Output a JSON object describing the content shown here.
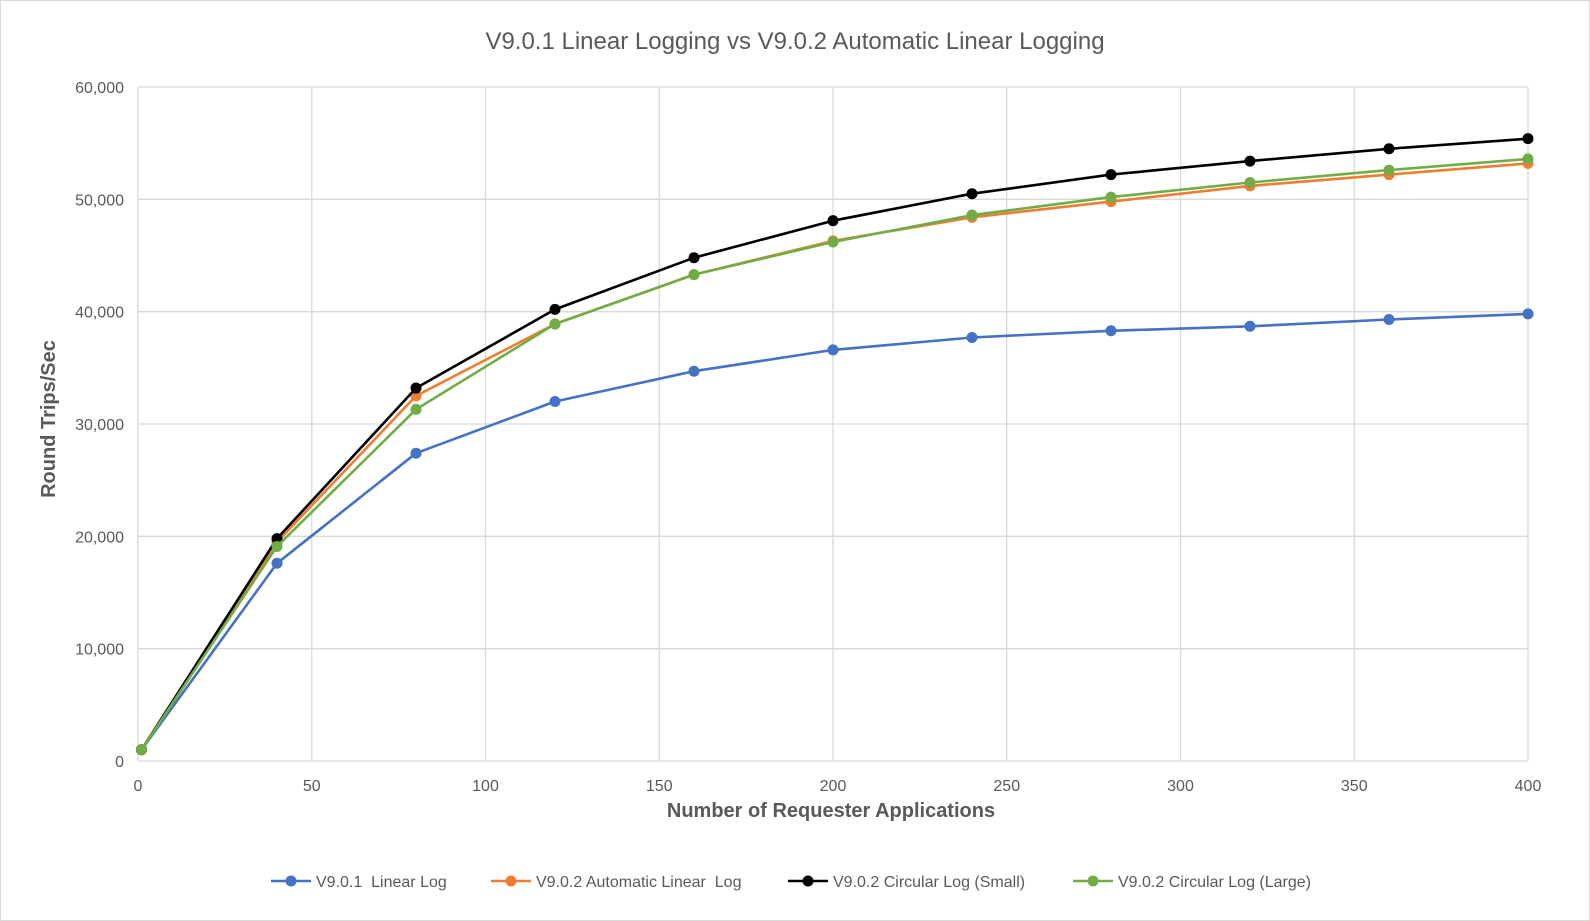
{
  "chart_data": {
    "type": "line",
    "title": "V9.0.1 Linear Logging vs V9.0.2 Automatic Linear Logging",
    "xlabel": "Number of Requester Applications",
    "ylabel": "Round Trips/Sec",
    "xlim": [
      0,
      400
    ],
    "ylim": [
      0,
      60000
    ],
    "x_ticks": [
      0,
      50,
      100,
      150,
      200,
      250,
      300,
      350,
      400
    ],
    "y_ticks": [
      0,
      10000,
      20000,
      30000,
      40000,
      50000,
      60000
    ],
    "x_tick_labels": [
      "0",
      "50",
      "100",
      "150",
      "200",
      "250",
      "300",
      "350",
      "400"
    ],
    "y_tick_labels": [
      "0",
      "10,000",
      "20,000",
      "30,000",
      "40,000",
      "50,000",
      "60,000"
    ],
    "grid": true,
    "legend_position": "bottom",
    "x": [
      1,
      40,
      80,
      120,
      160,
      200,
      240,
      280,
      320,
      360,
      400
    ],
    "series": [
      {
        "name": "V9.0.1  Linear Log",
        "color": "#4472c4",
        "values": [
          1000,
          17600,
          27400,
          32000,
          34700,
          36600,
          37700,
          38300,
          38700,
          39300,
          39800
        ]
      },
      {
        "name": "V9.0.2 Automatic Linear  Log",
        "color": "#ed7d31",
        "values": [
          1000,
          19500,
          32500,
          38900,
          43300,
          46300,
          48400,
          49800,
          51200,
          52200,
          53200
        ]
      },
      {
        "name": "V9.0.2 Circular Log (Small)",
        "color": "#000000",
        "values": [
          1000,
          19800,
          33200,
          40200,
          44800,
          48100,
          50500,
          52200,
          53400,
          54500,
          55400
        ]
      },
      {
        "name": "V9.0.2 Circular Log (Large)",
        "color": "#70ad47",
        "values": [
          1000,
          19100,
          31300,
          38900,
          43300,
          46200,
          48600,
          50200,
          51500,
          52600,
          53600
        ]
      }
    ]
  }
}
